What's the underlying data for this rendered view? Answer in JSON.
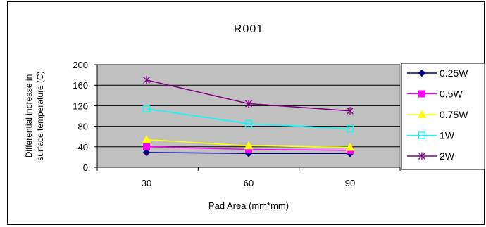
{
  "chart_data": {
    "type": "line",
    "title": "R001",
    "xlabel": "Pad Area (mm*mm)",
    "ylabel": [
      "Differential increase in",
      "surface temperature (C)"
    ],
    "categories": [
      "30",
      "60",
      "90"
    ],
    "ylim": [
      0,
      200
    ],
    "yticks": [
      0,
      40,
      80,
      120,
      160,
      200
    ],
    "grid": true,
    "plot_background": "#c0c0c0",
    "legend": "right",
    "series": [
      {
        "name": "0.25W",
        "values": [
          29,
          27,
          27
        ],
        "color": "#000080",
        "marker": "diamond"
      },
      {
        "name": "0.5W",
        "values": [
          40,
          35,
          33
        ],
        "color": "#ff00ff",
        "marker": "square"
      },
      {
        "name": "0.75W",
        "values": [
          54,
          42,
          39
        ],
        "color": "#ffff00",
        "marker": "triangle"
      },
      {
        "name": "1W",
        "values": [
          114,
          85,
          75
        ],
        "color": "#00ffff",
        "marker": "open-square"
      },
      {
        "name": "2W",
        "values": [
          170,
          124,
          110
        ],
        "color": "#800080",
        "marker": "star"
      }
    ]
  }
}
